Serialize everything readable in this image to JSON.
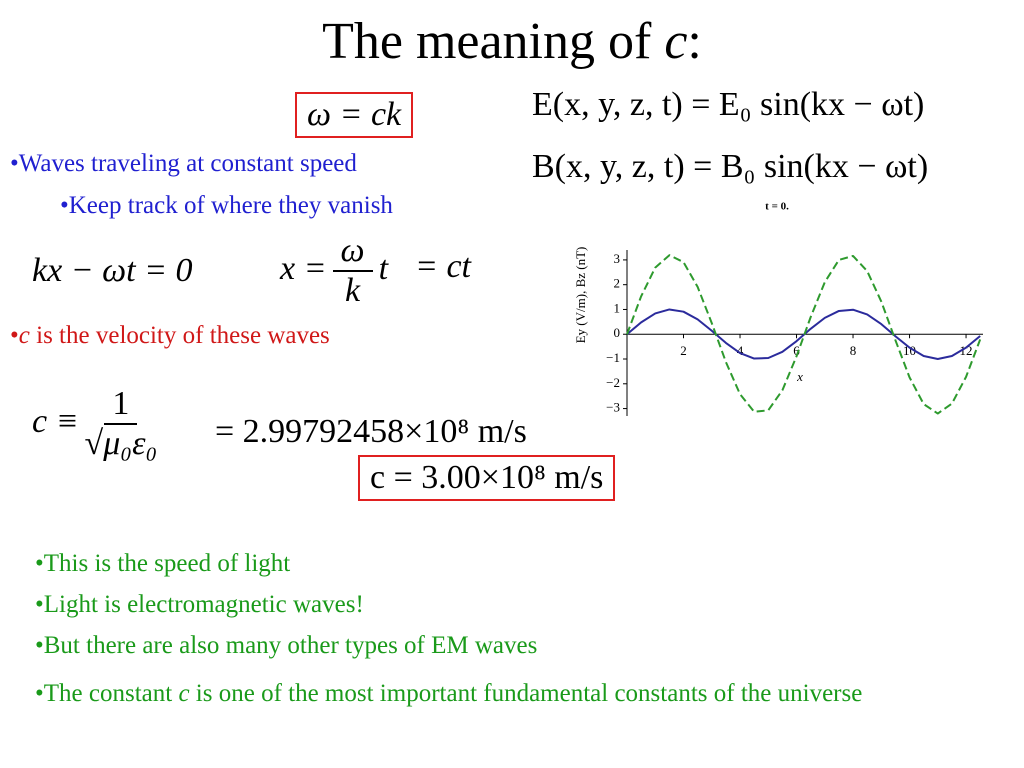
{
  "title": {
    "prefix": "The meaning of ",
    "italic": "c",
    "suffix": ":"
  },
  "equations": {
    "dispersion": "ω = ck",
    "e_field": "E(x, y, z, t) = E₀ sin(kx − ωt)",
    "b_field": "B(x, y, z, t) = B₀ sin(kx − ωt)",
    "phase": "kx − ωt = 0",
    "position": {
      "lhs": "x =",
      "num": "ω",
      "den": "k",
      "rhs": "t"
    },
    "position_ct": "= ct",
    "c_def": {
      "lhs": "c ≡",
      "num": "1",
      "den": "√μ₀ε₀"
    },
    "c_value": "= 2.99792458×10⁸  m/s",
    "c_rounded": "c = 3.00×10⁸  m/s"
  },
  "blue_bullets": [
    "•Waves  traveling at constant speed",
    "•Keep track of where they vanish"
  ],
  "red_bullet": {
    "prefix": "•",
    "italic": "c",
    "suffix": " is the velocity of these waves"
  },
  "green_bullets": [
    "•This is the speed of light",
    "•Light is electromagnetic waves!",
    "•But there are also many other types of EM waves"
  ],
  "last_bullet": {
    "prefix": "•The constant ",
    "italic": "c",
    "suffix": " is one of the most important fundamental constants of the universe"
  },
  "plot": {
    "title": "t = 0.",
    "xlabel": "x",
    "ylabel": "Ey (V/m), Bz (nT)",
    "xlim": [
      0,
      12.6
    ],
    "ylim": [
      -3.3,
      3.4
    ],
    "xticks": [
      2,
      4,
      6,
      8,
      10,
      12
    ],
    "yticks": [
      {
        "value": -3,
        "label": "−3"
      },
      {
        "value": -2,
        "label": "−2"
      },
      {
        "value": -1,
        "label": "−1"
      },
      0,
      1,
      2,
      3
    ],
    "x": [
      0,
      0.5,
      1,
      1.5,
      2,
      2.5,
      3,
      3.5,
      4,
      4.5,
      5,
      5.5,
      6,
      6.5,
      7,
      7.5,
      8,
      8.5,
      9,
      9.5,
      10,
      10.5,
      11,
      11.5,
      12,
      12.5
    ],
    "series": [
      {
        "color": "#2b2b9c",
        "dashed": false,
        "values": [
          0,
          0.48,
          0.84,
          1.0,
          0.91,
          0.6,
          0.14,
          -0.35,
          -0.76,
          -0.98,
          -0.96,
          -0.71,
          -0.28,
          0.22,
          0.66,
          0.94,
          0.99,
          0.8,
          0.41,
          -0.08,
          -0.54,
          -0.88,
          -1.0,
          -0.88,
          -0.54,
          -0.07
        ]
      },
      {
        "color": "#2e9a2e",
        "dashed": true,
        "values": [
          0,
          1.53,
          2.69,
          3.19,
          2.91,
          1.91,
          0.45,
          -1.12,
          -2.42,
          -3.13,
          -3.07,
          -2.26,
          -0.89,
          0.69,
          2.1,
          3.0,
          3.16,
          2.55,
          1.32,
          -0.24,
          -1.74,
          -2.82,
          -3.2,
          -2.8,
          -1.72,
          -0.21
        ]
      }
    ]
  }
}
